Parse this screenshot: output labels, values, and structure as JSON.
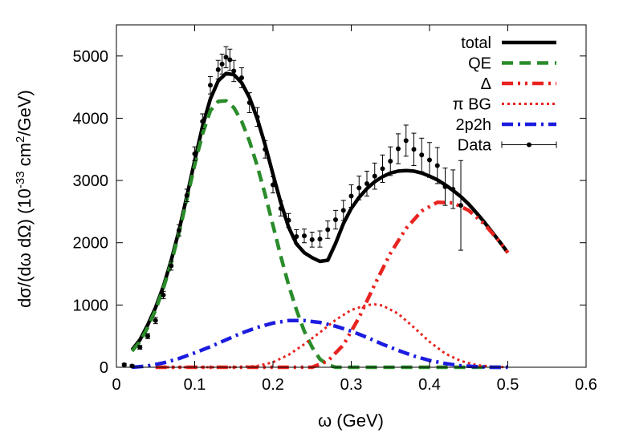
{
  "chart_data": {
    "type": "line",
    "xlabel": "ω (GeV)",
    "ylabel": {
      "main": "dσ/(dω dΩ) (10",
      "exp1": "-33",
      "mid": " cm",
      "exp2": "2",
      "tail": "/GeV)"
    },
    "xlim": [
      0,
      0.6
    ],
    "ylim": [
      0,
      5500
    ],
    "x_ticks": [
      0,
      0.1,
      0.2,
      0.3,
      0.4,
      0.5,
      0.6
    ],
    "y_ticks": [
      0,
      1000,
      2000,
      3000,
      4000,
      5000
    ],
    "legend_placement": "top-right",
    "grid": false,
    "series": [
      {
        "name": "total",
        "color": "#000000",
        "style": "solid",
        "x": [
          0.02,
          0.03,
          0.04,
          0.05,
          0.06,
          0.07,
          0.08,
          0.09,
          0.1,
          0.11,
          0.12,
          0.13,
          0.14,
          0.15,
          0.16,
          0.17,
          0.18,
          0.19,
          0.2,
          0.21,
          0.22,
          0.23,
          0.24,
          0.25,
          0.26,
          0.27,
          0.28,
          0.29,
          0.3,
          0.31,
          0.32,
          0.33,
          0.34,
          0.35,
          0.36,
          0.37,
          0.38,
          0.39,
          0.4,
          0.41,
          0.42,
          0.43,
          0.44,
          0.45,
          0.46,
          0.47,
          0.48,
          0.49,
          0.5
        ],
        "y": [
          280,
          440,
          680,
          960,
          1300,
          1720,
          2200,
          2750,
          3320,
          3870,
          4310,
          4600,
          4720,
          4700,
          4570,
          4330,
          3990,
          3570,
          3100,
          2640,
          2250,
          1980,
          1840,
          1760,
          1700,
          1720,
          1990,
          2310,
          2550,
          2730,
          2870,
          2980,
          3060,
          3120,
          3150,
          3160,
          3150,
          3120,
          3070,
          3010,
          2930,
          2840,
          2740,
          2620,
          2480,
          2330,
          2170,
          2010,
          1840
        ]
      },
      {
        "name": "QE",
        "color": "#2a8c2a",
        "style": "dashed",
        "x": [
          0.02,
          0.03,
          0.04,
          0.05,
          0.06,
          0.07,
          0.08,
          0.09,
          0.1,
          0.11,
          0.12,
          0.13,
          0.14,
          0.15,
          0.16,
          0.17,
          0.18,
          0.19,
          0.2,
          0.21,
          0.22,
          0.23,
          0.24,
          0.25,
          0.26,
          0.27,
          0.28,
          0.3,
          0.35,
          0.4,
          0.45,
          0.5
        ],
        "y": [
          260,
          410,
          640,
          920,
          1270,
          1680,
          2160,
          2700,
          3250,
          3750,
          4120,
          4270,
          4280,
          4170,
          3950,
          3630,
          3230,
          2770,
          2280,
          1780,
          1320,
          920,
          580,
          320,
          130,
          40,
          0,
          0,
          0,
          0,
          0,
          0
        ]
      },
      {
        "name": "Δ",
        "color": "#e8231f",
        "style": "dash-dot-dot",
        "x": [
          0.05,
          0.1,
          0.15,
          0.2,
          0.25,
          0.27,
          0.29,
          0.31,
          0.33,
          0.35,
          0.37,
          0.39,
          0.41,
          0.43,
          0.45,
          0.47,
          0.49,
          0.5
        ],
        "y": [
          0,
          0,
          0,
          0,
          0,
          100,
          360,
          800,
          1330,
          1830,
          2230,
          2510,
          2650,
          2640,
          2520,
          2300,
          2010,
          1840
        ]
      },
      {
        "name": "π BG",
        "color": "#e8231f",
        "style": "dotted",
        "x": [
          0.05,
          0.1,
          0.15,
          0.18,
          0.2,
          0.22,
          0.24,
          0.26,
          0.28,
          0.3,
          0.32,
          0.33,
          0.34,
          0.36,
          0.38,
          0.4,
          0.42,
          0.44,
          0.46,
          0.48,
          0.5
        ],
        "y": [
          0,
          0,
          0,
          20,
          80,
          200,
          370,
          560,
          760,
          920,
          1000,
          1010,
          990,
          860,
          640,
          410,
          220,
          100,
          35,
          10,
          0
        ]
      },
      {
        "name": "2p2h",
        "color": "#1c1ce0",
        "style": "dash-dot",
        "x": [
          0.02,
          0.04,
          0.06,
          0.08,
          0.1,
          0.12,
          0.14,
          0.16,
          0.18,
          0.2,
          0.22,
          0.24,
          0.26,
          0.28,
          0.3,
          0.32,
          0.34,
          0.36,
          0.38,
          0.4,
          0.42,
          0.44,
          0.46,
          0.48,
          0.5
        ],
        "y": [
          0,
          20,
          70,
          140,
          230,
          330,
          440,
          550,
          640,
          710,
          750,
          750,
          720,
          660,
          580,
          480,
          370,
          270,
          180,
          110,
          60,
          25,
          10,
          0,
          0
        ]
      }
    ],
    "data_points": {
      "name": "Data",
      "x": [
        0.01,
        0.02,
        0.03,
        0.04,
        0.05,
        0.06,
        0.07,
        0.08,
        0.09,
        0.1,
        0.11,
        0.12,
        0.13,
        0.135,
        0.14,
        0.145,
        0.15,
        0.16,
        0.17,
        0.18,
        0.19,
        0.2,
        0.21,
        0.22,
        0.23,
        0.24,
        0.25,
        0.26,
        0.27,
        0.28,
        0.29,
        0.3,
        0.31,
        0.32,
        0.33,
        0.34,
        0.35,
        0.36,
        0.37,
        0.38,
        0.39,
        0.4,
        0.41,
        0.42,
        0.43,
        0.44
      ],
      "y": [
        40,
        20,
        320,
        500,
        750,
        1160,
        1630,
        2200,
        2760,
        3430,
        3950,
        4530,
        4780,
        4870,
        4980,
        4940,
        4760,
        4650,
        4250,
        4020,
        3500,
        2930,
        2550,
        2360,
        2100,
        2110,
        2050,
        2060,
        2210,
        2370,
        2520,
        2750,
        2880,
        2950,
        3070,
        3190,
        3310,
        3510,
        3640,
        3500,
        3410,
        3330,
        3240,
        2900,
        2860,
        2600
      ],
      "err": [
        20,
        20,
        30,
        40,
        50,
        60,
        70,
        90,
        100,
        110,
        120,
        140,
        150,
        160,
        170,
        170,
        170,
        160,
        160,
        150,
        140,
        130,
        120,
        110,
        110,
        110,
        120,
        130,
        140,
        150,
        160,
        180,
        190,
        200,
        210,
        220,
        230,
        240,
        250,
        260,
        270,
        280,
        290,
        300,
        310,
        720
      ]
    }
  }
}
